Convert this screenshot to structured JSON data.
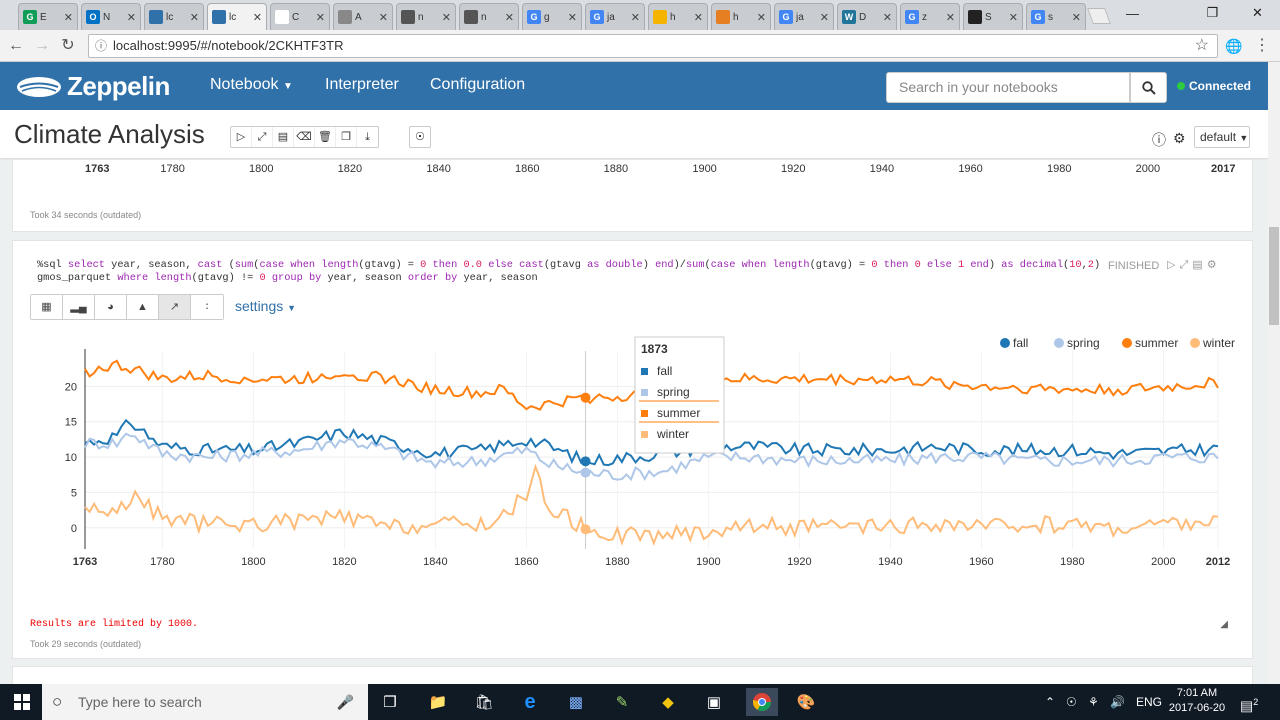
{
  "browser": {
    "tabs": [
      {
        "icon": "G",
        "color": "#0f9d58",
        "title": "E"
      },
      {
        "icon": "O",
        "color": "#0072c6",
        "title": "N"
      },
      {
        "icon": "",
        "color": "#3071a9",
        "title": "lc"
      },
      {
        "icon": "",
        "color": "#3071a9",
        "title": "lc",
        "active": true
      },
      {
        "icon": "",
        "color": "#ffffff",
        "title": "C"
      },
      {
        "icon": "",
        "color": "#888888",
        "title": "A"
      },
      {
        "icon": "",
        "color": "#555555",
        "title": "n"
      },
      {
        "icon": "",
        "color": "#555555",
        "title": "n"
      },
      {
        "icon": "G",
        "color": "#4285f4",
        "title": "g"
      },
      {
        "icon": "G",
        "color": "#4285f4",
        "title": "ja"
      },
      {
        "icon": "",
        "color": "#f4b400",
        "title": "h"
      },
      {
        "icon": "",
        "color": "#e67e22",
        "title": "h"
      },
      {
        "icon": "G",
        "color": "#4285f4",
        "title": "ja"
      },
      {
        "icon": "W",
        "color": "#21759b",
        "title": "D"
      },
      {
        "icon": "G",
        "color": "#4285f4",
        "title": "z"
      },
      {
        "icon": "",
        "color": "#222222",
        "title": "S"
      },
      {
        "icon": "G",
        "color": "#4285f4",
        "title": "s"
      }
    ],
    "url": "localhost:9995/#/notebook/2CKHTF3TR"
  },
  "header": {
    "brand": "Zeppelin",
    "nav": [
      "Notebook",
      "Interpreter",
      "Configuration"
    ],
    "search_placeholder": "Search in your notebooks",
    "status": "Connected"
  },
  "notebook": {
    "title": "Climate Analysis",
    "interpreter_button": "default"
  },
  "para1": {
    "xticks": [
      "1763",
      "1780",
      "1800",
      "1820",
      "1840",
      "1860",
      "1880",
      "1900",
      "1920",
      "1940",
      "1960",
      "1980",
      "2000",
      "2017"
    ],
    "took": "Took 34 seconds (outdated)"
  },
  "para2": {
    "code_line1_prefix": "%sql ",
    "code_line1": "%sql select year, season, cast (sum(case when length(gtavg) = 0 then 0.0 else cast(gtavg as double) end)/sum(case when length(gtavg) = 0 then 0 else 1 end) as decimal(10,2)",
    "code_line2": "gmos_parquet where length(gtavg) != 0 group by year, season order by year, season",
    "status": "FINISHED",
    "settings_label": "settings",
    "limited": "Results are limited by 1000.",
    "took": "Took 29 seconds (outdated)"
  },
  "chart_data": {
    "type": "line",
    "x_range": [
      1763,
      2012
    ],
    "ylim": [
      -3,
      25
    ],
    "yticks": [
      0,
      5,
      10,
      15,
      20
    ],
    "xticks": [
      1763,
      1780,
      1800,
      1820,
      1840,
      1860,
      1880,
      1900,
      1920,
      1940,
      1960,
      1980,
      2000,
      2012
    ],
    "legend": "top-right",
    "series": [
      {
        "name": "fall",
        "color": "#1f77b4",
        "points": [
          [
            1763,
            12.0
          ],
          [
            1770,
            13.0
          ],
          [
            1773,
            15.0
          ],
          [
            1780,
            11.5
          ],
          [
            1790,
            11.0
          ],
          [
            1800,
            11.0
          ],
          [
            1810,
            12.0
          ],
          [
            1820,
            13.5
          ],
          [
            1830,
            12.0
          ],
          [
            1840,
            10.5
          ],
          [
            1850,
            11.0
          ],
          [
            1860,
            12.5
          ],
          [
            1865,
            11.5
          ],
          [
            1873,
            9.4
          ],
          [
            1880,
            9.8
          ],
          [
            1890,
            10.5
          ],
          [
            1900,
            11.5
          ],
          [
            1910,
            11.5
          ],
          [
            1920,
            11.0
          ],
          [
            1930,
            11.0
          ],
          [
            1940,
            11.0
          ],
          [
            1950,
            11.5
          ],
          [
            1960,
            11.0
          ],
          [
            1970,
            11.0
          ],
          [
            1980,
            11.0
          ],
          [
            1990,
            10.5
          ],
          [
            2000,
            10.8
          ],
          [
            2012,
            11.2
          ]
        ]
      },
      {
        "name": "spring",
        "color": "#aec7e8",
        "points": [
          [
            1763,
            12.0
          ],
          [
            1770,
            12.0
          ],
          [
            1773,
            13.5
          ],
          [
            1780,
            10.5
          ],
          [
            1790,
            10.0
          ],
          [
            1800,
            10.5
          ],
          [
            1810,
            11.0
          ],
          [
            1820,
            12.5
          ],
          [
            1830,
            11.0
          ],
          [
            1840,
            9.0
          ],
          [
            1850,
            9.5
          ],
          [
            1860,
            11.0
          ],
          [
            1865,
            9.0
          ],
          [
            1873,
            7.8
          ],
          [
            1880,
            7.5
          ],
          [
            1890,
            8.0
          ],
          [
            1900,
            10.0
          ],
          [
            1910,
            10.0
          ],
          [
            1920,
            9.5
          ],
          [
            1930,
            9.5
          ],
          [
            1940,
            9.5
          ],
          [
            1950,
            10.0
          ],
          [
            1960,
            10.0
          ],
          [
            1970,
            9.5
          ],
          [
            1980,
            9.5
          ],
          [
            1990,
            9.5
          ],
          [
            2000,
            10.0
          ],
          [
            2012,
            10.0
          ]
        ]
      },
      {
        "name": "summer",
        "color": "#ff7f0e",
        "points": [
          [
            1763,
            22.0
          ],
          [
            1770,
            23.0
          ],
          [
            1773,
            22.5
          ],
          [
            1780,
            21.0
          ],
          [
            1790,
            21.5
          ],
          [
            1800,
            21.0
          ],
          [
            1810,
            21.0
          ],
          [
            1820,
            22.0
          ],
          [
            1830,
            21.0
          ],
          [
            1840,
            19.5
          ],
          [
            1850,
            19.0
          ],
          [
            1855,
            19.5
          ],
          [
            1860,
            17.0
          ],
          [
            1865,
            17.5
          ],
          [
            1873,
            18.4
          ],
          [
            1880,
            18.5
          ],
          [
            1890,
            19.5
          ],
          [
            1900,
            21.0
          ],
          [
            1910,
            21.0
          ],
          [
            1920,
            21.0
          ],
          [
            1930,
            21.0
          ],
          [
            1940,
            21.0
          ],
          [
            1950,
            20.5
          ],
          [
            1960,
            20.0
          ],
          [
            1970,
            19.8
          ],
          [
            1980,
            19.5
          ],
          [
            1990,
            19.5
          ],
          [
            2000,
            19.8
          ],
          [
            2012,
            20.5
          ]
        ]
      },
      {
        "name": "winter",
        "color": "#ffbb78",
        "points": [
          [
            1763,
            3.0
          ],
          [
            1770,
            2.0
          ],
          [
            1773,
            4.5
          ],
          [
            1780,
            1.5
          ],
          [
            1790,
            0.5
          ],
          [
            1800,
            0.5
          ],
          [
            1810,
            1.0
          ],
          [
            1820,
            1.5
          ],
          [
            1830,
            0.0
          ],
          [
            1840,
            0.5
          ],
          [
            1850,
            0.5
          ],
          [
            1855,
            1.5
          ],
          [
            1860,
            5.0
          ],
          [
            1862,
            7.5
          ],
          [
            1865,
            3.0
          ],
          [
            1873,
            -0.2
          ],
          [
            1880,
            -1.0
          ],
          [
            1890,
            -1.0
          ],
          [
            1900,
            -0.5
          ],
          [
            1910,
            0.5
          ],
          [
            1920,
            0.0
          ],
          [
            1930,
            0.0
          ],
          [
            1940,
            0.0
          ],
          [
            1950,
            0.5
          ],
          [
            1960,
            0.0
          ],
          [
            1970,
            0.5
          ],
          [
            1980,
            0.5
          ],
          [
            1990,
            0.0
          ],
          [
            2000,
            0.5
          ],
          [
            2012,
            1.0
          ]
        ]
      }
    ],
    "tooltip": {
      "year": "1873",
      "entries": [
        {
          "name": "fall",
          "color": "#1f77b4"
        },
        {
          "name": "spring",
          "color": "#aec7e8"
        },
        {
          "name": "summer",
          "color": "#ff7f0e"
        },
        {
          "name": "winter",
          "color": "#ffbb78"
        }
      ]
    }
  },
  "taskbar": {
    "search_placeholder": "Type here to search",
    "language": "ENG",
    "time": "7:01 AM",
    "date": "2017-06-20",
    "notifications": "2"
  }
}
